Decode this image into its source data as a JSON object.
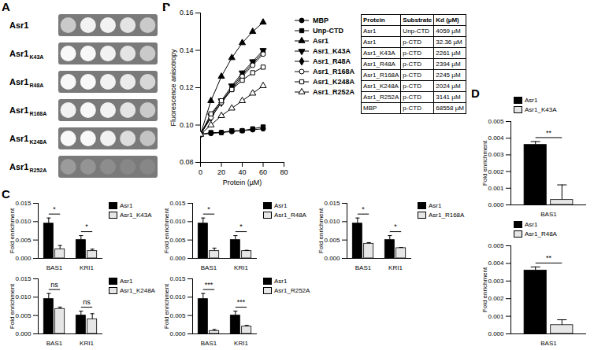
{
  "panel_labels": [
    "A",
    "B",
    "C",
    "D"
  ],
  "spot_assay": {
    "rows": [
      {
        "name": "Asr1",
        "mutation": null,
        "growth": [
          0.6,
          0.9,
          0.9,
          0.8,
          0.6
        ]
      },
      {
        "name": "Asr1",
        "mutation": "K43A",
        "growth": [
          0.95,
          0.95,
          0.9,
          0.8,
          0.6
        ]
      },
      {
        "name": "Asr1",
        "mutation": "R48A",
        "growth": [
          0.95,
          0.95,
          0.9,
          0.85,
          0.7
        ]
      },
      {
        "name": "Asr1",
        "mutation": "R168A",
        "growth": [
          0.9,
          0.95,
          0.9,
          0.8,
          0.6
        ]
      },
      {
        "name": "Asr1",
        "mutation": "K248A",
        "growth": [
          0.95,
          0.95,
          0.9,
          0.75,
          0.55
        ]
      },
      {
        "name": "Asr1",
        "mutation": "R252A",
        "growth": [
          0.25,
          0.2,
          0.15,
          0.1,
          0.1
        ]
      }
    ]
  },
  "table": {
    "columns": [
      "Protein",
      "Substrate",
      "Kd (µM)"
    ],
    "rows": [
      [
        "Asr1",
        "Unp-CTD",
        "4059 µM"
      ],
      [
        "Asr1",
        "p-CTD",
        "32.36 µM"
      ],
      [
        "Asr1_K43A",
        "p-CTD",
        "2261 µM"
      ],
      [
        "Asr1_R48A",
        "p-CTD",
        "2394 µM"
      ],
      [
        "Asr1_R168A",
        "p-CTD",
        "2245 µM"
      ],
      [
        "Asr1_K248A",
        "p-CTD",
        "2024 µM"
      ],
      [
        "Asr1_R252A",
        "p-CTD",
        "3141 µM"
      ],
      [
        "MBP",
        "p-CTD",
        "68558 µM"
      ]
    ]
  },
  "chart_data": [
    {
      "type": "line",
      "x_label": "Protein (µM)",
      "y_label": "Fluorescence anisotropy",
      "x": [
        0,
        10,
        20,
        30,
        40,
        50,
        60
      ],
      "xlim": [
        0,
        80
      ],
      "xticks": [
        0,
        20,
        40,
        60,
        80
      ],
      "ylim": [
        0.08,
        0.16
      ],
      "yticks": [
        {
          "value": 0.08,
          "label": "0.08"
        },
        {
          "value": 0.1,
          "label": "0.10"
        },
        {
          "value": 0.12,
          "label": "0.12"
        },
        {
          "value": 0.14,
          "label": "0.14"
        },
        {
          "value": 0.16,
          "label": "0.16"
        }
      ],
      "grid": false,
      "legend": "right",
      "series": [
        {
          "name": "MBP",
          "color": "#000000",
          "marker": "circle",
          "values": [
            0.095,
            0.0955,
            0.096,
            0.0965,
            0.097,
            0.0975,
            0.098
          ]
        },
        {
          "name": "Unp-CTD",
          "color": "#000000",
          "marker": "square",
          "values": [
            0.095,
            0.096,
            0.096,
            0.097,
            0.097,
            0.098,
            0.099
          ]
        },
        {
          "name": "Asr1",
          "color": "#000000",
          "marker": "triangle",
          "values": [
            0.095,
            0.113,
            0.126,
            0.136,
            0.144,
            0.15,
            0.155
          ]
        },
        {
          "name": "Asr1_K43A",
          "color": "#000000",
          "marker": "triangle-down",
          "values": [
            0.095,
            0.105,
            0.113,
            0.121,
            0.128,
            0.134,
            0.14
          ]
        },
        {
          "name": "Asr1_R48A",
          "color": "#000000",
          "marker": "diamond",
          "values": [
            0.095,
            0.104,
            0.112,
            0.12,
            0.127,
            0.133,
            0.139
          ]
        },
        {
          "name": "Asr1_R168A",
          "color": "#000000",
          "marker": "circle-open",
          "values": [
            0.095,
            0.104,
            0.112,
            0.119,
            0.126,
            0.132,
            0.138
          ]
        },
        {
          "name": "Asr1_K248A",
          "color": "#000000",
          "marker": "square-open",
          "values": [
            0.095,
            0.106,
            0.113,
            0.119,
            0.124,
            0.128,
            0.131
          ]
        },
        {
          "name": "Asr1_R252A",
          "color": "#000000",
          "marker": "triangle-open",
          "values": [
            0.095,
            0.1,
            0.105,
            0.109,
            0.113,
            0.117,
            0.121
          ]
        }
      ]
    },
    {
      "type": "bar",
      "y_label": "Fold enrichment",
      "categories": [
        "BAS1",
        "KRI1"
      ],
      "ylim": [
        0,
        0.015
      ],
      "yticks": [
        {
          "value": 0,
          "label": "0.000"
        },
        {
          "value": 0.005,
          "label": "0.005"
        },
        {
          "value": 0.01,
          "label": "0.010"
        },
        {
          "value": 0.015,
          "label": "0.015"
        }
      ],
      "legend": "right",
      "significance": [
        "*",
        "*"
      ],
      "series": [
        {
          "name": "Asr1",
          "color": "#000000",
          "values": [
            0.0095,
            0.005
          ],
          "errors": [
            0.0015,
            0.0012
          ]
        },
        {
          "name": "Asr1_K43A",
          "color": "#e6e6e6",
          "values": [
            0.0025,
            0.002
          ],
          "errors": [
            0.001,
            0.0005
          ]
        }
      ]
    },
    {
      "type": "bar",
      "y_label": "Fold enrichment",
      "categories": [
        "BAS1",
        "KRI1"
      ],
      "ylim": [
        0,
        0.015
      ],
      "yticks": [
        {
          "value": 0,
          "label": "0.000"
        },
        {
          "value": 0.005,
          "label": "0.005"
        },
        {
          "value": 0.01,
          "label": "0.010"
        },
        {
          "value": 0.015,
          "label": "0.015"
        }
      ],
      "legend": "right",
      "significance": [
        "*",
        "*"
      ],
      "series": [
        {
          "name": "Asr1",
          "color": "#000000",
          "values": [
            0.0095,
            0.005
          ],
          "errors": [
            0.0015,
            0.0012
          ]
        },
        {
          "name": "Asr1_R48A",
          "color": "#e6e6e6",
          "values": [
            0.002,
            0.002
          ],
          "errors": [
            0.0008,
            0.0002
          ]
        }
      ]
    },
    {
      "type": "bar",
      "y_label": "Fold enrichment",
      "categories": [
        "BAS1",
        "KRI1"
      ],
      "ylim": [
        0,
        0.015
      ],
      "yticks": [
        {
          "value": 0,
          "label": "0.000"
        },
        {
          "value": 0.005,
          "label": "0.005"
        },
        {
          "value": 0.01,
          "label": "0.010"
        },
        {
          "value": 0.015,
          "label": "0.015"
        }
      ],
      "legend": "right",
      "significance": [
        "*",
        "*"
      ],
      "series": [
        {
          "name": "Asr1",
          "color": "#000000",
          "values": [
            0.0095,
            0.005
          ],
          "errors": [
            0.0015,
            0.0012
          ]
        },
        {
          "name": "Asr1_R168A",
          "color": "#e6e6e6",
          "values": [
            0.004,
            0.0028
          ],
          "errors": [
            0.0003,
            0.0002
          ]
        }
      ]
    },
    {
      "type": "bar",
      "y_label": "Fold enrichment",
      "categories": [
        "BAS1",
        "KRI1"
      ],
      "ylim": [
        0,
        0.015
      ],
      "yticks": [
        {
          "value": 0,
          "label": "0.000"
        },
        {
          "value": 0.005,
          "label": "0.005"
        },
        {
          "value": 0.01,
          "label": "0.010"
        },
        {
          "value": 0.015,
          "label": "0.015"
        }
      ],
      "legend": "right",
      "significance": [
        "ns",
        "ns"
      ],
      "series": [
        {
          "name": "Asr1",
          "color": "#000000",
          "values": [
            0.0095,
            0.005
          ],
          "errors": [
            0.0015,
            0.0012
          ]
        },
        {
          "name": "Asr1_K248A",
          "color": "#e6e6e6",
          "values": [
            0.0068,
            0.004
          ],
          "errors": [
            0.0005,
            0.0015
          ]
        }
      ]
    },
    {
      "type": "bar",
      "y_label": "Fold enrichment",
      "categories": [
        "BAS1",
        "KRI1"
      ],
      "ylim": [
        0,
        0.015
      ],
      "yticks": [
        {
          "value": 0,
          "label": "0.000"
        },
        {
          "value": 0.005,
          "label": "0.005"
        },
        {
          "value": 0.01,
          "label": "0.010"
        },
        {
          "value": 0.015,
          "label": "0.015"
        }
      ],
      "legend": "right",
      "significance": [
        "***",
        "***"
      ],
      "series": [
        {
          "name": "Asr1",
          "color": "#000000",
          "values": [
            0.0095,
            0.005
          ],
          "errors": [
            0.0015,
            0.0012
          ]
        },
        {
          "name": "Asr1_R252A",
          "color": "#e6e6e6",
          "values": [
            0.0008,
            0.002
          ],
          "errors": [
            0.0004,
            0.0003
          ]
        }
      ]
    },
    {
      "type": "bar",
      "y_label": "Fold enrichment",
      "categories": [
        "BAS1"
      ],
      "ylim": [
        0,
        0.005
      ],
      "yticks": [
        {
          "value": 0,
          "label": "0.000"
        },
        {
          "value": 0.001,
          "label": "0.001"
        },
        {
          "value": 0.002,
          "label": "0.002"
        },
        {
          "value": 0.003,
          "label": "0.003"
        },
        {
          "value": 0.004,
          "label": "0.004"
        },
        {
          "value": 0.005,
          "label": "0.005"
        }
      ],
      "legend": "top",
      "significance": [
        "**"
      ],
      "series": [
        {
          "name": "Asr1",
          "color": "#000000",
          "values": [
            0.0036
          ],
          "errors": [
            0.0002
          ]
        },
        {
          "name": "Asr1_K43A",
          "color": "#e6e6e6",
          "values": [
            0.0003
          ],
          "errors": [
            0.0009
          ]
        }
      ]
    },
    {
      "type": "bar",
      "y_label": "Fold enrichment",
      "categories": [
        "BAS1"
      ],
      "ylim": [
        0,
        0.005
      ],
      "yticks": [
        {
          "value": 0,
          "label": "0.000"
        },
        {
          "value": 0.001,
          "label": "0.001"
        },
        {
          "value": 0.002,
          "label": "0.002"
        },
        {
          "value": 0.003,
          "label": "0.003"
        },
        {
          "value": 0.004,
          "label": "0.004"
        },
        {
          "value": 0.005,
          "label": "0.005"
        }
      ],
      "legend": "top",
      "significance": [
        "**"
      ],
      "series": [
        {
          "name": "Asr1",
          "color": "#000000",
          "values": [
            0.0036
          ],
          "errors": [
            0.0002
          ]
        },
        {
          "name": "Asr1_R48A",
          "color": "#e6e6e6",
          "values": [
            0.0005
          ],
          "errors": [
            0.0003
          ]
        }
      ]
    }
  ]
}
